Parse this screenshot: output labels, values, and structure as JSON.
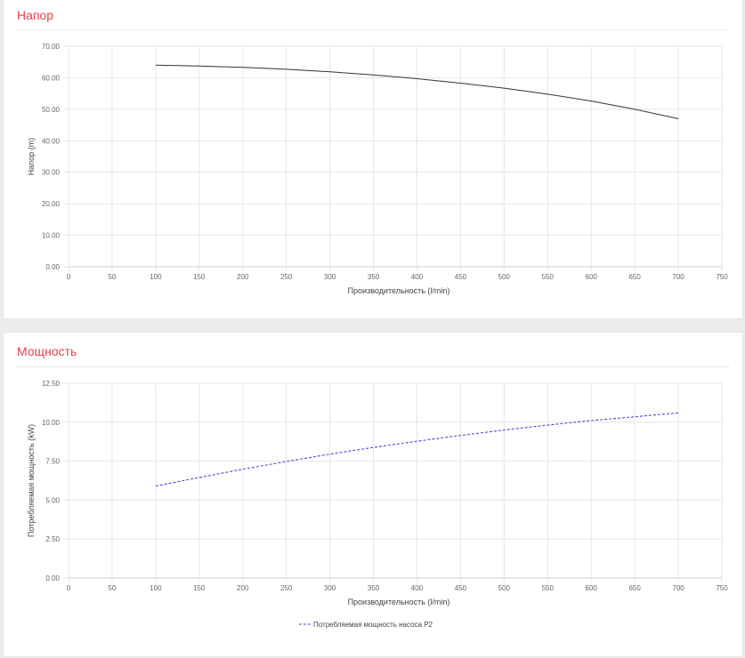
{
  "panels": {
    "head": {
      "title": "Напор"
    },
    "power": {
      "title": "Мощность"
    }
  },
  "colors": {
    "title": "#e8404a",
    "head_line": "#333333",
    "power_line": "#4a47d6"
  },
  "chart_data": [
    {
      "type": "line",
      "title": "Напор",
      "xlabel": "Производительность (l/min)",
      "ylabel": "Напор (m)",
      "xlim": [
        0,
        750
      ],
      "ylim": [
        0,
        70
      ],
      "x_ticks": [
        "0",
        "50",
        "100",
        "150",
        "200",
        "250",
        "300",
        "350",
        "400",
        "450",
        "500",
        "550",
        "600",
        "650",
        "700",
        "750"
      ],
      "y_ticks": [
        "0.00",
        "10.00",
        "20.00",
        "30.00",
        "40.00",
        "50.00",
        "60.00",
        "70.00"
      ],
      "grid": true,
      "series": [
        {
          "x": [
            100,
            150,
            200,
            250,
            300,
            350,
            400,
            450,
            500,
            550,
            600,
            650,
            700
          ],
          "y": [
            64.0,
            63.7,
            63.3,
            62.7,
            61.9,
            60.9,
            59.7,
            58.3,
            56.7,
            54.8,
            52.6,
            50.0,
            47.0
          ]
        }
      ]
    },
    {
      "type": "line",
      "title": "Мощность",
      "xlabel": "Производительность (l/min)",
      "ylabel": "Потребляемая мощность (kW)",
      "xlim": [
        0,
        750
      ],
      "ylim": [
        0,
        12.5
      ],
      "x_ticks": [
        "0",
        "50",
        "100",
        "150",
        "200",
        "250",
        "300",
        "350",
        "400",
        "450",
        "500",
        "550",
        "600",
        "650",
        "700",
        "750"
      ],
      "y_ticks": [
        "0.00",
        "2.50",
        "5.00",
        "7.50",
        "10.00",
        "12.50"
      ],
      "grid": true,
      "legend": "bottom-center",
      "series": [
        {
          "name": "Потребляемая мощность насоса P2",
          "style": "dashed",
          "x": [
            100,
            150,
            200,
            250,
            300,
            350,
            400,
            450,
            500,
            550,
            600,
            650,
            700
          ],
          "y": [
            5.9,
            6.45,
            6.98,
            7.48,
            7.95,
            8.38,
            8.78,
            9.15,
            9.5,
            9.82,
            10.1,
            10.35,
            10.6
          ]
        }
      ]
    }
  ]
}
